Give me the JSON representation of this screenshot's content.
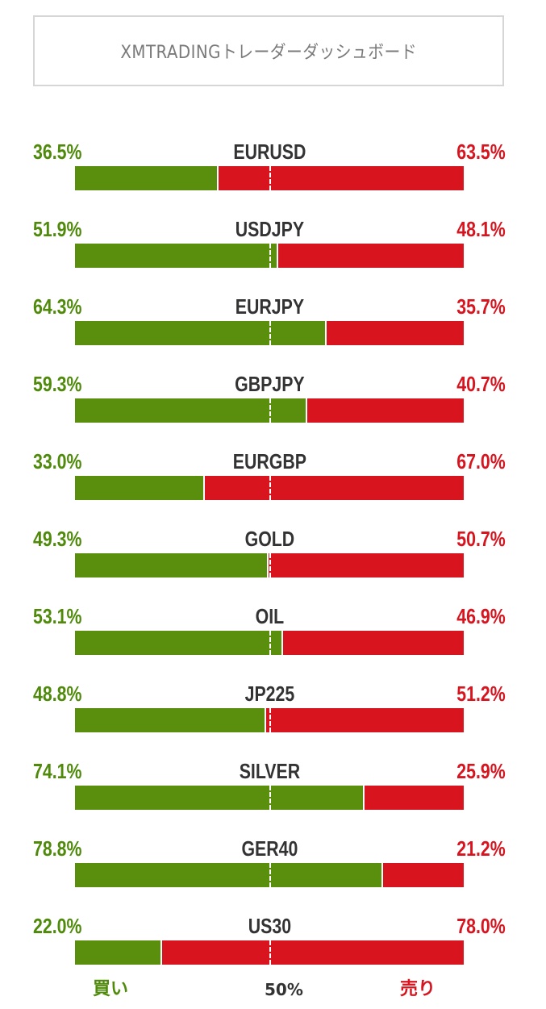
{
  "title": "XMTRADINGトレーダーダッシュボード",
  "legend": {
    "buy_label": "買い",
    "mid_label": "50%",
    "sell_label": "売り"
  },
  "colors": {
    "buy": "#5a8f0e",
    "sell": "#d8141f"
  },
  "chart_data": {
    "type": "bar",
    "stacked": true,
    "orientation": "horizontal",
    "title": "XMTRADINGトレーダーダッシュボード",
    "categories": [
      "EURUSD",
      "USDJPY",
      "EURJPY",
      "GBPJPY",
      "EURGBP",
      "GOLD",
      "OIL",
      "JP225",
      "SILVER",
      "GER40",
      "US30"
    ],
    "series": [
      {
        "name": "買い",
        "color": "#5a8f0e",
        "values": [
          36.5,
          51.9,
          64.3,
          59.3,
          33.0,
          49.3,
          53.1,
          48.8,
          74.1,
          78.8,
          22.0
        ],
        "labels": [
          "36.5%",
          "51.9%",
          "64.3%",
          "59.3%",
          "33.0%",
          "49.3%",
          "53.1%",
          "48.8%",
          "74.1%",
          "78.8%",
          "22.0%"
        ]
      },
      {
        "name": "売り",
        "color": "#d8141f",
        "values": [
          63.5,
          48.1,
          35.7,
          40.7,
          67.0,
          50.7,
          46.9,
          51.2,
          25.9,
          21.2,
          78.0
        ],
        "labels": [
          "63.5%",
          "48.1%",
          "35.7%",
          "40.7%",
          "67.0%",
          "50.7%",
          "46.9%",
          "51.2%",
          "25.9%",
          "21.2%",
          "78.0%"
        ]
      }
    ],
    "xlim": [
      0,
      100
    ],
    "reference_line": 50,
    "unit": "%"
  }
}
